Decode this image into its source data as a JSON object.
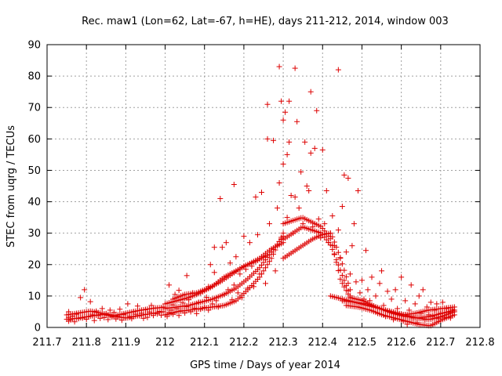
{
  "chart_data": {
    "type": "scatter",
    "title": "Rec. maw1 (Lon=62, Lat=-67, h=HE), days 211-212, 2014, window 003",
    "xlabel": "GPS time / Days of year 2014",
    "ylabel": "STEC from uqrg / TECUs",
    "xlim": [
      211.7,
      212.8
    ],
    "ylim": [
      0,
      90
    ],
    "xticks": [
      211.7,
      211.8,
      211.9,
      212,
      212.1,
      212.2,
      212.3,
      212.4,
      212.5,
      212.6,
      212.7,
      212.8
    ],
    "xtick_labels": [
      "211.7",
      "211.8",
      "211.9",
      "212",
      "212.1",
      "212.2",
      "212.3",
      "212.4",
      "212.5",
      "212.6",
      "212.7",
      "212.8"
    ],
    "yticks": [
      0,
      10,
      20,
      30,
      40,
      50,
      60,
      70,
      80,
      90
    ],
    "ytick_labels": [
      "0",
      "10",
      "20",
      "30",
      "40",
      "50",
      "60",
      "70",
      "80",
      "90"
    ],
    "grid": true,
    "marker": "+",
    "color": "#dd0000",
    "series": [
      {
        "name": "STEC",
        "points": [
          [
            211.755,
            2.0
          ],
          [
            211.755,
            3.2
          ],
          [
            211.755,
            5.0
          ],
          [
            211.76,
            2.4
          ],
          [
            211.765,
            3.6
          ],
          [
            211.77,
            1.8
          ],
          [
            211.775,
            4.2
          ],
          [
            211.78,
            2.8
          ],
          [
            211.785,
            9.5
          ],
          [
            211.79,
            3.0
          ],
          [
            211.795,
            12.0
          ],
          [
            211.8,
            2.6
          ],
          [
            211.805,
            3.4
          ],
          [
            211.81,
            8.2
          ],
          [
            211.815,
            4.0
          ],
          [
            211.82,
            2.2
          ],
          [
            211.825,
            5.2
          ],
          [
            211.83,
            3.8
          ],
          [
            211.835,
            2.9
          ],
          [
            211.84,
            6.0
          ],
          [
            211.845,
            3.1
          ],
          [
            211.85,
            4.4
          ],
          [
            211.855,
            2.5
          ],
          [
            211.86,
            5.5
          ],
          [
            211.865,
            3.3
          ],
          [
            211.87,
            4.8
          ],
          [
            211.875,
            2.7
          ],
          [
            211.88,
            3.6
          ],
          [
            211.885,
            5.8
          ],
          [
            211.89,
            2.3
          ],
          [
            211.895,
            4.1
          ],
          [
            211.9,
            3.0
          ],
          [
            211.905,
            7.5
          ],
          [
            211.91,
            3.5
          ],
          [
            211.915,
            2.8
          ],
          [
            211.92,
            5.0
          ],
          [
            211.925,
            4.2
          ],
          [
            211.93,
            6.8
          ],
          [
            211.935,
            3.7
          ],
          [
            211.94,
            4.5
          ],
          [
            211.945,
            2.9
          ],
          [
            211.95,
            5.6
          ],
          [
            211.955,
            3.2
          ],
          [
            211.96,
            4.9
          ],
          [
            211.965,
            7.0
          ],
          [
            211.97,
            3.8
          ],
          [
            211.975,
            6.2
          ],
          [
            211.98,
            4.3
          ],
          [
            211.985,
            5.1
          ],
          [
            211.99,
            3.9
          ],
          [
            211.995,
            6.5
          ],
          [
            212.005,
            3.5
          ],
          [
            212.005,
            6.2
          ],
          [
            212.01,
            4.8
          ],
          [
            212.01,
            13.5
          ],
          [
            212.015,
            5.5
          ],
          [
            212.02,
            7.2
          ],
          [
            212.02,
            4.2
          ],
          [
            212.025,
            10.5
          ],
          [
            212.03,
            6.0
          ],
          [
            212.035,
            3.8
          ],
          [
            212.035,
            11.8
          ],
          [
            212.04,
            5.3
          ],
          [
            212.045,
            7.8
          ],
          [
            212.05,
            4.6
          ],
          [
            212.055,
            16.5
          ],
          [
            212.055,
            6.6
          ],
          [
            212.06,
            8.8
          ],
          [
            212.065,
            5.0
          ],
          [
            212.07,
            11.0
          ],
          [
            212.075,
            6.1
          ],
          [
            212.08,
            4.4
          ],
          [
            212.085,
            8.0
          ],
          [
            212.09,
            5.8
          ],
          [
            212.095,
            11.5
          ],
          [
            212.1,
            6.4
          ],
          [
            212.105,
            9.6
          ],
          [
            212.11,
            13.0
          ],
          [
            212.11,
            5.5
          ],
          [
            212.115,
            20.0
          ],
          [
            212.12,
            7.5
          ],
          [
            212.125,
            17.5
          ],
          [
            212.125,
            25.5
          ],
          [
            212.13,
            8.5
          ],
          [
            212.135,
            6.5
          ],
          [
            212.14,
            41.0
          ],
          [
            212.14,
            15.0
          ],
          [
            212.145,
            25.5
          ],
          [
            212.15,
            10.5
          ],
          [
            212.155,
            27.0
          ],
          [
            212.16,
            12.0
          ],
          [
            212.165,
            20.5
          ],
          [
            212.17,
            8.8
          ],
          [
            212.175,
            45.5
          ],
          [
            212.175,
            13.5
          ],
          [
            212.18,
            22.5
          ],
          [
            212.185,
            11.0
          ],
          [
            212.19,
            17.0
          ],
          [
            212.195,
            9.5
          ],
          [
            212.2,
            29.0
          ],
          [
            212.205,
            18.5
          ],
          [
            212.21,
            12.5
          ],
          [
            212.215,
            27.0
          ],
          [
            212.22,
            19.5
          ],
          [
            212.225,
            13.0
          ],
          [
            212.23,
            41.5
          ],
          [
            212.235,
            29.5
          ],
          [
            212.24,
            17.0
          ],
          [
            212.245,
            43.0
          ],
          [
            212.25,
            22.5
          ],
          [
            212.255,
            14.0
          ],
          [
            212.26,
            71.0
          ],
          [
            212.26,
            60.0
          ],
          [
            212.265,
            33.0
          ],
          [
            212.27,
            24.0
          ],
          [
            212.275,
            59.5
          ],
          [
            212.28,
            18.0
          ],
          [
            212.285,
            38.0
          ],
          [
            212.29,
            83.0
          ],
          [
            212.29,
            46.0
          ],
          [
            212.295,
            72.0
          ],
          [
            212.295,
            28.0
          ],
          [
            212.3,
            66.0
          ],
          [
            212.3,
            52.0
          ],
          [
            212.305,
            68.5
          ],
          [
            212.31,
            55.0
          ],
          [
            212.31,
            35.0
          ],
          [
            212.315,
            72.0
          ],
          [
            212.315,
            59.0
          ],
          [
            212.32,
            42.0
          ],
          [
            212.325,
            30.0
          ],
          [
            212.33,
            82.5
          ],
          [
            212.33,
            41.5
          ],
          [
            212.335,
            65.5
          ],
          [
            212.34,
            38.0
          ],
          [
            212.345,
            49.5
          ],
          [
            212.35,
            33.0
          ],
          [
            212.355,
            59.0
          ],
          [
            212.36,
            45.0
          ],
          [
            212.365,
            43.5
          ],
          [
            212.37,
            55.5
          ],
          [
            212.37,
            75.0
          ],
          [
            212.375,
            32.0
          ],
          [
            212.38,
            57.0
          ],
          [
            212.385,
            69.0
          ],
          [
            212.39,
            34.5
          ],
          [
            212.395,
            28.5
          ],
          [
            212.4,
            56.5
          ],
          [
            212.405,
            33.0
          ],
          [
            212.41,
            43.5
          ],
          [
            212.415,
            27.0
          ],
          [
            212.42,
            30.0
          ],
          [
            212.425,
            35.5
          ],
          [
            212.43,
            26.0
          ],
          [
            212.44,
            82.0
          ],
          [
            212.44,
            31.0
          ],
          [
            212.445,
            22.0
          ],
          [
            212.45,
            38.5
          ],
          [
            212.455,
            48.5
          ],
          [
            212.46,
            24.0
          ],
          [
            212.465,
            47.5
          ],
          [
            212.47,
            17.0
          ],
          [
            212.475,
            26.0
          ],
          [
            212.48,
            33.0
          ],
          [
            212.485,
            14.5
          ],
          [
            212.49,
            43.5
          ],
          [
            212.495,
            11.0
          ],
          [
            212.5,
            15.0
          ],
          [
            212.505,
            9.0
          ],
          [
            212.51,
            24.5
          ],
          [
            212.515,
            12.0
          ],
          [
            212.52,
            8.5
          ],
          [
            212.525,
            16.0
          ],
          [
            212.53,
            6.5
          ],
          [
            212.535,
            10.0
          ],
          [
            212.54,
            4.5
          ],
          [
            212.545,
            14.0
          ],
          [
            212.55,
            18.0
          ],
          [
            212.555,
            7.0
          ],
          [
            212.56,
            3.5
          ],
          [
            212.565,
            11.5
          ],
          [
            212.57,
            5.0
          ],
          [
            212.575,
            9.0
          ],
          [
            212.58,
            2.5
          ],
          [
            212.585,
            12.0
          ],
          [
            212.59,
            6.0
          ],
          [
            212.595,
            4.0
          ],
          [
            212.6,
            16.0
          ],
          [
            212.605,
            2.0
          ],
          [
            212.61,
            8.5
          ],
          [
            212.615,
            1.0
          ],
          [
            212.62,
            5.5
          ],
          [
            212.625,
            13.5
          ],
          [
            212.63,
            3.0
          ],
          [
            212.635,
            7.5
          ],
          [
            212.64,
            1.5
          ],
          [
            212.645,
            10.0
          ],
          [
            212.65,
            4.5
          ],
          [
            212.655,
            12.0
          ],
          [
            212.66,
            2.5
          ],
          [
            212.665,
            6.5
          ],
          [
            212.67,
            4.0
          ],
          [
            212.675,
            8.0
          ],
          [
            212.68,
            3.5
          ],
          [
            212.685,
            5.5
          ],
          [
            212.69,
            7.5
          ],
          [
            212.695,
            2.8
          ],
          [
            212.7,
            4.5
          ],
          [
            212.705,
            8.0
          ],
          [
            212.71,
            3.2
          ],
          [
            212.715,
            6.0
          ],
          [
            212.72,
            4.8
          ],
          [
            212.725,
            3.0
          ],
          [
            212.73,
            5.8
          ]
        ],
        "tracks": [
          {
            "x_range": [
              211.75,
              211.995
            ],
            "values": [
              2.6,
              3.0,
              3.6,
              4.2,
              3.4,
              3.0,
              3.8,
              4.4,
              5.0
            ]
          },
          {
            "x_range": [
              211.75,
              211.995
            ],
            "values": [
              4.0,
              4.6,
              5.2,
              4.4,
              3.8,
              4.6,
              5.4,
              6.0,
              6.4
            ]
          },
          {
            "x_range": [
              212.0,
              212.3
            ],
            "values": [
              4.0,
              5.0,
              5.5,
              6.0,
              6.5,
              7.0,
              8.5,
              12.0,
              16.0,
              22.0,
              30.0
            ]
          },
          {
            "x_range": [
              212.0,
              212.3
            ],
            "values": [
              6.0,
              6.5,
              7.0,
              8.0,
              9.0,
              10.5,
              12.5,
              15.5,
              19.0,
              24.0,
              29.0
            ]
          },
          {
            "x_range": [
              212.0,
              212.3
            ],
            "values": [
              7.5,
              8.5,
              9.5,
              11.0,
              13.0,
              16.0,
              18.0,
              20.0,
              22.0,
              25.0,
              27.0
            ]
          },
          {
            "x_range": [
              212.02,
              212.26
            ],
            "values": [
              9.0,
              10.5,
              11.0,
              12.5,
              14.5,
              17.0,
              19.5,
              21.0,
              23.0
            ]
          },
          {
            "x_range": [
              212.3,
              212.47
            ],
            "values": [
              28.0,
              30.0,
              32.0,
              31.0,
              30.0,
              26.0,
              18.0,
              10.0
            ]
          },
          {
            "x_range": [
              212.3,
              212.47
            ],
            "values": [
              22.0,
              24.0,
              26.0,
              28.0,
              29.5,
              30.0,
              22.0,
              12.0
            ]
          },
          {
            "x_range": [
              212.3,
              212.47
            ],
            "values": [
              33.0,
              34.0,
              35.0,
              33.5,
              32.0,
              28.0,
              15.0,
              9.5
            ]
          },
          {
            "x_range": [
              212.42,
              212.735
            ],
            "values": [
              10.0,
              9.0,
              8.0,
              7.5,
              6.0,
              4.5,
              3.5,
              3.0,
              3.5,
              4.5,
              5.5
            ]
          },
          {
            "x_range": [
              212.45,
              212.735
            ],
            "values": [
              8.5,
              8.0,
              7.0,
              6.0,
              5.0,
              4.0,
              3.0,
              2.5,
              3.5,
              5.0
            ]
          },
          {
            "x_range": [
              212.46,
              212.735
            ],
            "values": [
              7.0,
              6.5,
              5.5,
              4.0,
              3.0,
              2.0,
              1.0,
              0.5,
              2.5,
              4.0
            ]
          },
          {
            "x_range": [
              212.47,
              212.735
            ],
            "values": [
              9.5,
              8.5,
              6.5,
              5.0,
              4.0,
              4.5,
              5.5,
              6.0,
              6.5
            ]
          }
        ]
      }
    ]
  }
}
